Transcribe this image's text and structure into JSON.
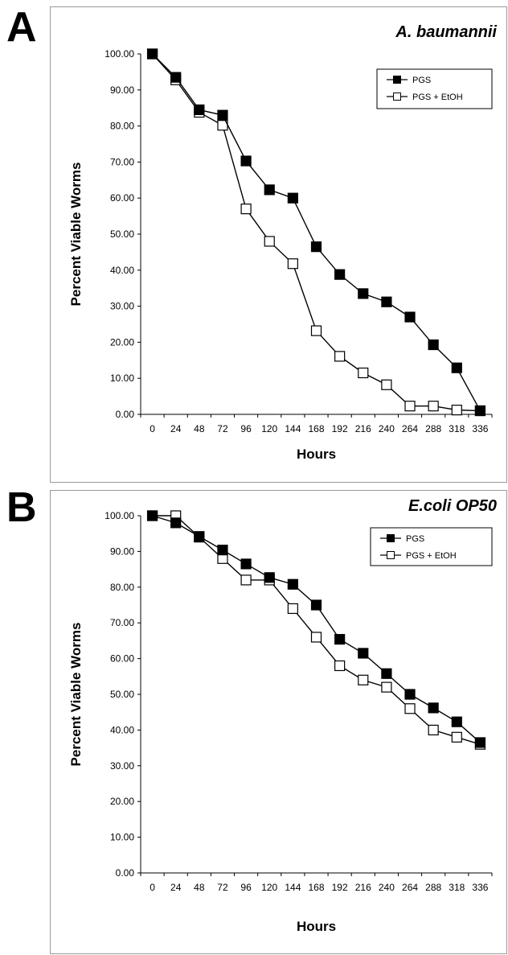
{
  "panels": [
    {
      "letter": "A",
      "chart_data": {
        "type": "line",
        "title": "A. baumannii",
        "xlabel": "Hours",
        "ylabel": "Percent Viable Worms",
        "categories": [
          "0",
          "24",
          "48",
          "72",
          "96",
          "120",
          "144",
          "168",
          "192",
          "216",
          "240",
          "264",
          "288",
          "318",
          "336"
        ],
        "y_ticks": [
          "0.00",
          "10.00",
          "20.00",
          "30.00",
          "40.00",
          "50.00",
          "60.00",
          "70.00",
          "80.00",
          "90.00",
          "100.00"
        ],
        "ylim": [
          0,
          100
        ],
        "grid": false,
        "legend_position": "top-right",
        "series": [
          {
            "name": "PGS",
            "marker": "filled-square",
            "values": [
              100.0,
              93.5,
              84.5,
              83.0,
              70.3,
              62.3,
              60.0,
              46.5,
              38.8,
              33.5,
              31.2,
              27.0,
              19.3,
              12.9,
              1.0
            ]
          },
          {
            "name": "PGS + EtOH",
            "marker": "open-square",
            "values": [
              100.0,
              92.8,
              83.8,
              80.2,
              57.0,
              48.0,
              41.8,
              23.2,
              16.1,
              11.5,
              8.2,
              2.3,
              2.3,
              1.2,
              1.0
            ]
          }
        ]
      }
    },
    {
      "letter": "B",
      "chart_data": {
        "type": "line",
        "title": "E.coli OP50",
        "xlabel": "Hours",
        "ylabel": "Percent Viable Worms",
        "categories": [
          "0",
          "24",
          "48",
          "72",
          "96",
          "120",
          "144",
          "168",
          "192",
          "216",
          "240",
          "264",
          "288",
          "318",
          "336"
        ],
        "y_ticks": [
          "0.00",
          "10.00",
          "20.00",
          "30.00",
          "40.00",
          "50.00",
          "60.00",
          "70.00",
          "80.00",
          "90.00",
          "100.00"
        ],
        "ylim": [
          0,
          100
        ],
        "grid": false,
        "legend_position": "top-right",
        "series": [
          {
            "name": "PGS",
            "marker": "filled-square",
            "values": [
              100.0,
              98.0,
              94.2,
              90.4,
              86.5,
              82.7,
              80.8,
              75.0,
              65.4,
              61.5,
              55.8,
              50.0,
              46.2,
              42.3,
              36.5
            ]
          },
          {
            "name": "PGS + EtOH",
            "marker": "open-square",
            "values": [
              100.0,
              100.0,
              94.0,
              88.0,
              82.0,
              82.0,
              74.0,
              66.0,
              58.0,
              54.0,
              52.0,
              46.0,
              40.0,
              38.0,
              36.0
            ]
          }
        ]
      }
    }
  ]
}
